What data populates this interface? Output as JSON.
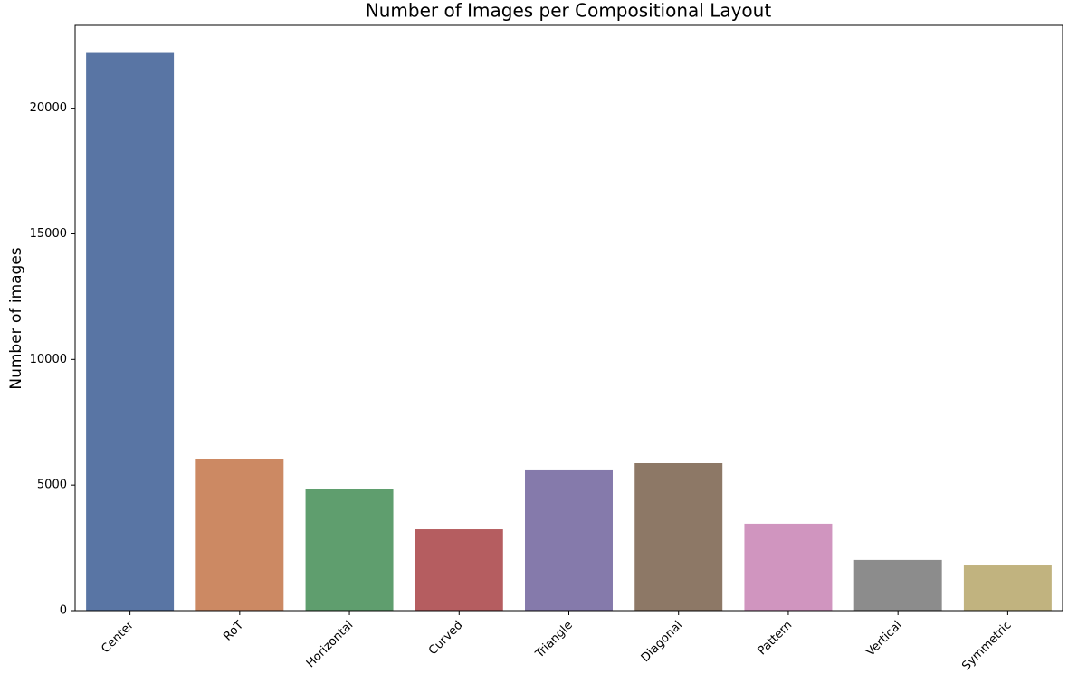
{
  "chart_data": {
    "type": "bar",
    "title": "Number of Images per Compositional Layout",
    "ylabel": "Number of images",
    "categories": [
      "Center",
      "RoT",
      "Horizontal",
      "Curved",
      "Triangle",
      "Diagonal",
      "Pattern",
      "Vertical",
      "Symmetric"
    ],
    "values": [
      22200,
      6050,
      4860,
      3240,
      5620,
      5870,
      3460,
      2020,
      1800
    ],
    "colors": [
      "#5975a4",
      "#cc8963",
      "#5f9e6e",
      "#b55d60",
      "#857aab",
      "#8d7866",
      "#d095bf",
      "#8c8c8c",
      "#c1b37f"
    ],
    "ylim": [
      0,
      23300
    ],
    "yticks": [
      0,
      5000,
      10000,
      15000,
      20000
    ],
    "grid": false
  }
}
